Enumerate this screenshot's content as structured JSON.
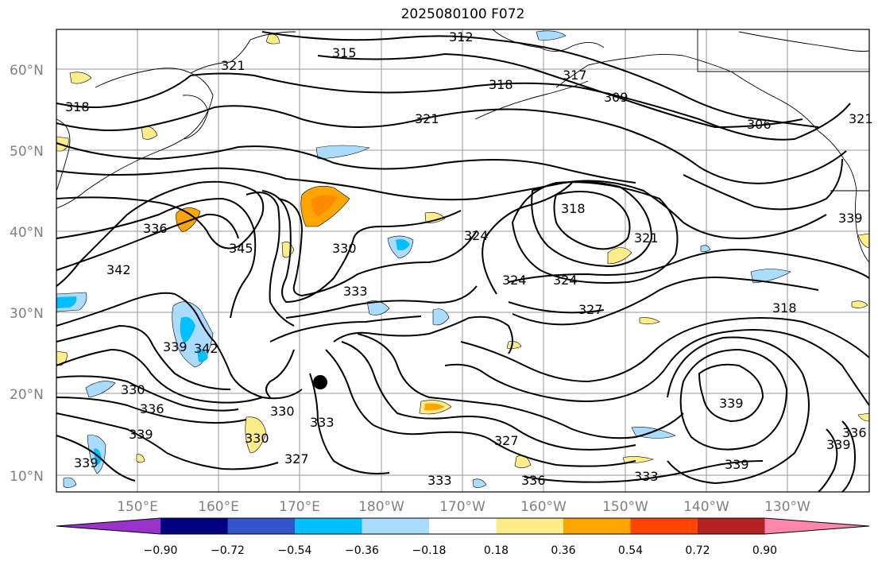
{
  "title": "2025080100 F072",
  "map": {
    "lat_labels": [
      "60°N",
      "50°N",
      "40°N",
      "30°N",
      "20°N",
      "10°N"
    ],
    "lon_labels": [
      "150°E",
      "160°E",
      "170°E",
      "180°W",
      "170°W",
      "160°W",
      "150°W",
      "140°W",
      "130°W"
    ],
    "contour_labels": [
      "312",
      "315",
      "321",
      "318",
      "318",
      "321",
      "309",
      "306",
      "321",
      "317",
      "318",
      "321",
      "324",
      "324",
      "324",
      "327",
      "336",
      "345",
      "342",
      "330",
      "333",
      "339",
      "342",
      "330",
      "336",
      "339",
      "330",
      "333",
      "330",
      "327",
      "339",
      "318",
      "339",
      "339",
      "327",
      "336",
      "333",
      "339",
      "333",
      "339",
      "336"
    ],
    "marker": "storm-center"
  },
  "colorbar": {
    "ticks": [
      "−0.90",
      "−0.72",
      "−0.54",
      "−0.36",
      "−0.18",
      "0.18",
      "0.36",
      "0.54",
      "0.72",
      "0.90"
    ],
    "colors": [
      "#9933cc",
      "#000080",
      "#3355cc",
      "#00bfff",
      "#aadcff",
      "#ffffff",
      "#ffec8b",
      "#ffa500",
      "#ff4500",
      "#b22222",
      "#ff88aa"
    ]
  }
}
